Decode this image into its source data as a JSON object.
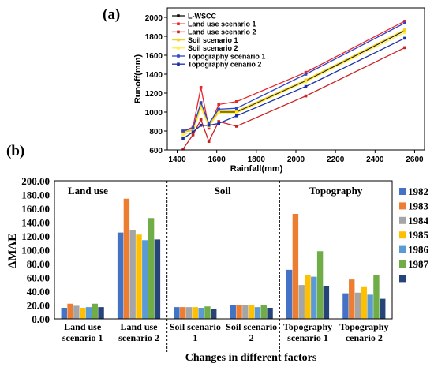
{
  "chart_data": [
    {
      "panel_label": "(a)",
      "type": "line",
      "xlabel": "Rainfall(mm)",
      "ylabel": "Runoff(mm)",
      "xlim": [
        1350,
        2650
      ],
      "ylim": [
        600,
        2100
      ],
      "x_ticks": [
        "1400",
        "1600",
        "1800",
        "2000",
        "2200",
        "2400",
        "2600"
      ],
      "y_ticks": [
        "600",
        "800",
        "1000",
        "1200",
        "1400",
        "1600",
        "1800",
        "2000"
      ],
      "x": [
        1430,
        1480,
        1520,
        1560,
        1610,
        1700,
        2050,
        2550
      ],
      "legend_position": "top-left",
      "series": [
        {
          "name": "L-WSCC",
          "color": "#111111",
          "values": [
            790,
            810,
            1080,
            870,
            1000,
            1000,
            1330,
            1860
          ]
        },
        {
          "name": "Land use scenario 1",
          "color": "#e8272d",
          "values": [
            800,
            840,
            1260,
            830,
            1080,
            1110,
            1420,
            1960
          ]
        },
        {
          "name": "Land use scenario 2",
          "color": "#cc2222",
          "values": [
            610,
            760,
            920,
            690,
            900,
            850,
            1170,
            1680
          ]
        },
        {
          "name": "Soil  scenario 1",
          "color": "#f2d21d",
          "values": [
            790,
            810,
            1080,
            870,
            1010,
            1010,
            1340,
            1870
          ]
        },
        {
          "name": "Soil  scenario 2",
          "color": "#ffee44",
          "values": [
            760,
            790,
            1040,
            850,
            990,
            990,
            1320,
            1840
          ]
        },
        {
          "name": "Topography  scenario 1",
          "color": "#2e45c8",
          "values": [
            800,
            830,
            1100,
            880,
            1030,
            1040,
            1400,
            1940
          ]
        },
        {
          "name": "Topography cenario 2",
          "color": "#1c2fa8",
          "values": [
            720,
            790,
            860,
            860,
            880,
            960,
            1270,
            1780
          ]
        }
      ]
    },
    {
      "panel_label": "(b)",
      "type": "bar",
      "ylabel": "ΔMAE",
      "xlabel": "Changes in different factors",
      "ylim": [
        0,
        200
      ],
      "y_ticks": [
        "0.00",
        "20.00",
        "40.00",
        "60.00",
        "80.00",
        "100.00",
        "120.00",
        "140.00",
        "160.00",
        "180.00",
        "200.00"
      ],
      "groups": [
        {
          "name": "Land use",
          "categories": [
            {
              "label_lines": [
                "Land use",
                "scenario 1"
              ],
              "values": [
                16,
                22,
                19,
                16,
                17,
                22,
                17
              ]
            },
            {
              "label_lines": [
                "Land use",
                "scenario 2"
              ],
              "values": [
                125,
                174,
                129,
                122,
                114,
                146,
                115
              ]
            }
          ]
        },
        {
          "name": "Soil",
          "categories": [
            {
              "label_lines": [
                "Soil   scenario",
                "1"
              ],
              "values": [
                17,
                17,
                17,
                17,
                16,
                18,
                14
              ]
            },
            {
              "label_lines": [
                "Soil scenario",
                "2"
              ],
              "values": [
                20,
                20,
                20,
                20,
                17,
                20,
                16
              ]
            }
          ]
        },
        {
          "name": "Topography",
          "categories": [
            {
              "label_lines": [
                "Topography",
                "scenario 1"
              ],
              "values": [
                71,
                152,
                49,
                63,
                61,
                98,
                48
              ]
            },
            {
              "label_lines": [
                "Topography",
                "cenario 2"
              ],
              "values": [
                37,
                57,
                38,
                46,
                35,
                64,
                29
              ]
            }
          ]
        }
      ],
      "series": [
        {
          "name": "1982",
          "color": "#4472c4"
        },
        {
          "name": "1983",
          "color": "#ed7d31"
        },
        {
          "name": "1984",
          "color": "#a5a5a5"
        },
        {
          "name": "1985",
          "color": "#ffc000"
        },
        {
          "name": "1986",
          "color": "#5b9bd5"
        },
        {
          "name": "1987",
          "color": "#70ad47"
        },
        {
          "name": "",
          "color": "#264478"
        }
      ],
      "legend_position": "right"
    }
  ]
}
